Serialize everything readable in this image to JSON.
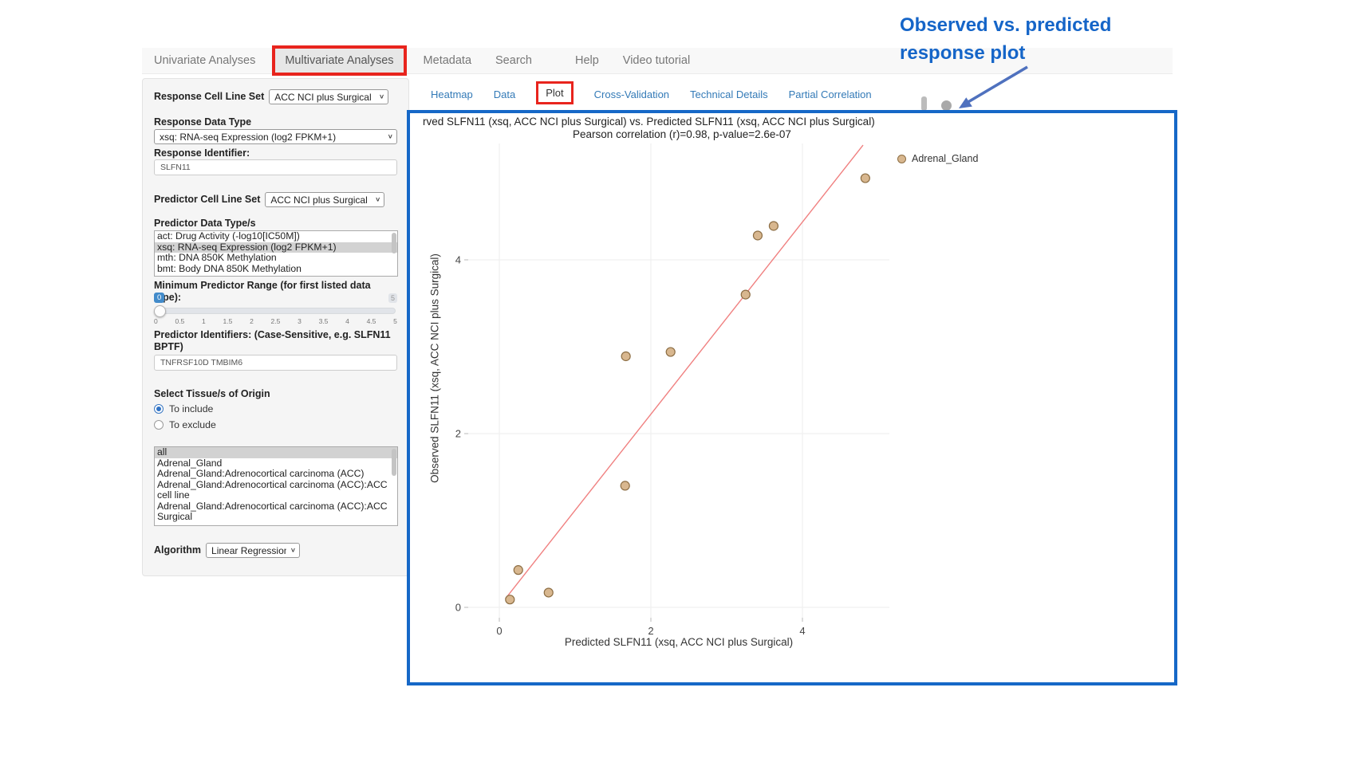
{
  "nav": {
    "items": [
      "Univariate Analyses",
      "Multivariate Analyses",
      "Metadata",
      "Search",
      "Help",
      "Video tutorial"
    ],
    "active_index": 1
  },
  "tabs": {
    "items": [
      "Heatmap",
      "Data",
      "Plot",
      "Cross-Validation",
      "Technical Details",
      "Partial Correlation"
    ],
    "active_index": 2
  },
  "sidebar": {
    "response_cell_line_set": {
      "label": "Response Cell Line Set",
      "value": "ACC NCI plus Surgical"
    },
    "response_data_type": {
      "label": "Response Data Type",
      "value": "xsq: RNA-seq Expression (log2 FPKM+1)"
    },
    "response_identifier": {
      "label": "Response Identifier:",
      "value": "SLFN11"
    },
    "predictor_cell_line_set": {
      "label": "Predictor Cell Line Set",
      "value": "ACC NCI plus Surgical"
    },
    "predictor_data_types": {
      "label": "Predictor Data Type/s",
      "options": [
        "act: Drug Activity (-log10[IC50M])",
        "xsq: RNA-seq Expression (log2 FPKM+1)",
        "mth: DNA 850K Methylation",
        "bmt: Body DNA 850K Methylation"
      ],
      "selected": "xsq: RNA-seq Expression (log2 FPKM+1)"
    },
    "min_predictor_range": {
      "label": "Minimum Predictor Range (for first listed data type):",
      "value": "0",
      "max_label": "5",
      "ticks": [
        "0",
        "0.5",
        "1",
        "1.5",
        "2",
        "2.5",
        "3",
        "3.5",
        "4",
        "4.5",
        "5"
      ]
    },
    "predictor_identifiers": {
      "label": "Predictor Identifiers: (Case-Sensitive, e.g. SLFN11 BPTF)",
      "value": "TNFRSF10D TMBIM6"
    },
    "tissue": {
      "label": "Select Tissue/s of Origin",
      "radios": [
        {
          "label": "To include",
          "selected": true
        },
        {
          "label": "To exclude",
          "selected": false
        }
      ],
      "options": [
        "all",
        "Adrenal_Gland",
        "Adrenal_Gland:Adrenocortical carcinoma (ACC)",
        "Adrenal_Gland:Adrenocortical carcinoma (ACC):ACC cell line",
        "Adrenal_Gland:Adrenocortical carcinoma (ACC):ACC Surgical"
      ],
      "selected": "all"
    },
    "algorithm": {
      "label": "Algorithm",
      "value": "Linear Regression"
    }
  },
  "annotation": {
    "line1": "Observed  vs. predicted",
    "line2": "response plot"
  },
  "chart_data": {
    "type": "scatter",
    "title": "rved SLFN11 (xsq, ACC NCI plus Surgical) vs. Predicted SLFN11 (xsq, ACC NCI plus Surgical)",
    "subtitle": "Pearson correlation (r)=0.98, p-value=2.6e-07",
    "pearson_r": 0.98,
    "p_value": "2.6e-07",
    "xlabel": "Predicted SLFN11 (xsq, ACC NCI plus Surgical)",
    "ylabel": "Observed SLFN11 (xsq, ACC NCI plus Surgical)",
    "x_ticks": [
      0,
      2,
      4
    ],
    "y_ticks": [
      0,
      2,
      4
    ],
    "xlim": [
      -0.45,
      5.3
    ],
    "ylim": [
      -0.15,
      5.35
    ],
    "grid": true,
    "legend": {
      "position": "right",
      "entries": [
        {
          "label": "Adrenal_Gland",
          "color": "#D8B78F"
        }
      ]
    },
    "series": [
      {
        "name": "Adrenal_Gland",
        "color": "#D8B78F",
        "stroke": "#8D6E44",
        "points": [
          [
            0.14,
            0.09
          ],
          [
            0.25,
            0.43
          ],
          [
            0.65,
            0.17
          ],
          [
            1.66,
            1.4
          ],
          [
            1.67,
            2.89
          ],
          [
            2.26,
            2.94
          ],
          [
            3.25,
            3.6
          ],
          [
            3.41,
            4.28
          ],
          [
            3.62,
            4.39
          ],
          [
            4.83,
            4.94
          ]
        ]
      }
    ],
    "trendline": {
      "color": "#F08080",
      "x1": 0.08,
      "y1": 0.1,
      "x2": 4.8,
      "y2": 5.32
    }
  },
  "colors": {
    "accent_blue": "#1668C7",
    "tab_link": "#337AB7",
    "annotation_blue": "#1565C8",
    "highlight_red": "#E8241D",
    "arrow_blue": "#4F71BE",
    "point_fill": "#D8B78F",
    "trend_red": "#F08080"
  }
}
